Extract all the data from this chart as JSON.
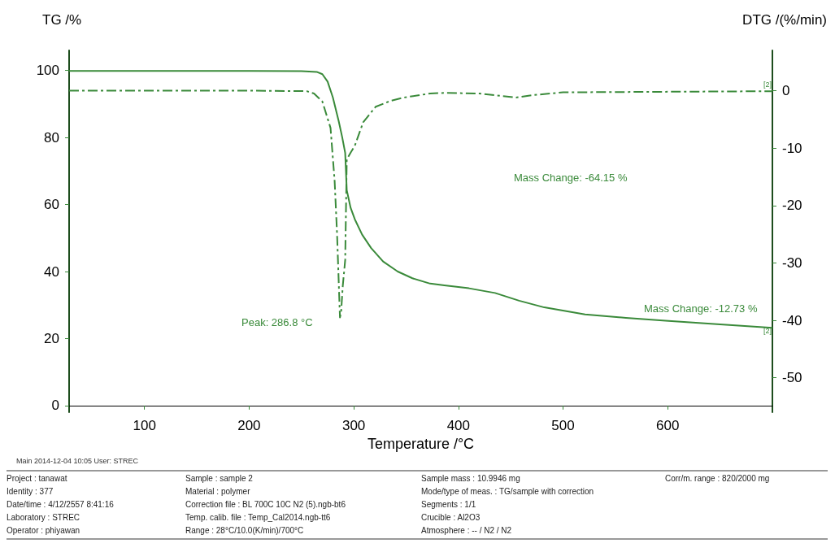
{
  "chart_data": {
    "type": "line",
    "xlabel": "Temperature /°C",
    "ylabel": "TG /%",
    "y2label": "DTG /(%/min)",
    "xlim": [
      28,
      700
    ],
    "xticks": [
      100,
      200,
      300,
      400,
      500,
      600
    ],
    "ylim": [
      -2,
      106
    ],
    "yticks": [
      0,
      20,
      40,
      60,
      80,
      100
    ],
    "y2lim": [
      -56,
      7
    ],
    "y2ticks": [
      -50,
      -40,
      -30,
      -20,
      -10,
      0
    ],
    "grid": false,
    "marker": "none",
    "series": [
      {
        "color": "#3a8a3a",
        "line_style": "solid",
        "x": [
          28,
          100,
          200,
          250,
          264.6,
          270,
          275,
          280,
          285.6,
          289,
          291.8,
          293.3,
          297,
          301,
          308,
          316.6,
          328,
          342,
          356,
          373,
          386.5,
          410,
          435,
          458,
          482,
          521,
          560,
          598,
          650,
          700
        ],
        "values": [
          99.9,
          99.9,
          99.9,
          99.8,
          99.6,
          98.9,
          96.7,
          92,
          84.9,
          80,
          75.4,
          64.3,
          59,
          55.6,
          51,
          47,
          43,
          40,
          38,
          36.4,
          35.9,
          35,
          33.6,
          31.3,
          29.3,
          27.2,
          26.2,
          25.3,
          24.2,
          23.2
        ]
      },
      {
        "color": "#3a8a3a",
        "line_style": "dashed",
        "axis": "y2",
        "x": [
          28,
          100,
          200,
          255,
          262,
          270,
          277.8,
          281.7,
          284,
          286.8,
          287.9,
          289.5,
          291.8,
          293.3,
          297,
          301,
          309,
          321,
          335,
          348,
          373,
          386.5,
          420,
          440,
          455,
          470,
          500,
          600,
          700
        ],
        "values": [
          0,
          0,
          0,
          -0.1,
          -0.5,
          -1.9,
          -6.5,
          -15.7,
          -24.8,
          -39.5,
          -38.6,
          -34,
          -29.5,
          -12,
          -10.8,
          -9.6,
          -5.5,
          -2.8,
          -1.8,
          -1.2,
          -0.5,
          -0.4,
          -0.5,
          -0.9,
          -1.2,
          -0.8,
          -0.3,
          -0.2,
          -0.1
        ]
      }
    ],
    "annotations": [
      "Mass Change: -64.15 %",
      "Mass Change: -12.73 %",
      "Peak: 286.8 °C",
      "[2]",
      "[2]",
      "Main 2014-12-04 10:05 User: STREC",
      "Project : tanawat",
      "Identity : 377",
      "Date/time : 4/12/2557 8:41:16",
      "Laboratory : STREC",
      "Operator : phiyawan",
      "Sample : sample 2",
      "Material : polymer",
      "Correction file : BL 700C 10C N2 (5).ngb-bt6",
      "Temp. calib. file : Temp_Cal2014.ngb-tt6",
      "Range : 28°C/10.0(K/min)/700°C",
      "Sample mass : 10.9946 mg",
      "Mode/type of meas. : TG/sample with correction",
      "Segments : 1/1",
      "Crucible : Al2O3",
      "Atmosphere : -- / N2 / N2",
      "Corr/m. range : 820/2000 mg"
    ]
  }
}
